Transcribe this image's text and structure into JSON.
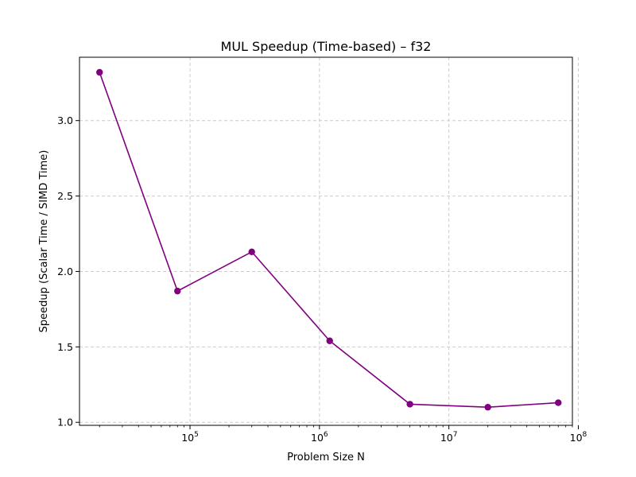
{
  "chart_data": {
    "type": "line",
    "title": "MUL Speedup (Time-based) – f32",
    "xlabel": "Problem Size N",
    "ylabel": "Speedup (Scalar Time / SIMD Time)",
    "x_scale": "log",
    "xlim": [
      14000,
      90000000
    ],
    "ylim": [
      0.98,
      3.42
    ],
    "grid": true,
    "x_ticks": [
      {
        "value": 100000,
        "base": "10",
        "exp": "5"
      },
      {
        "value": 1000000,
        "base": "10",
        "exp": "6"
      },
      {
        "value": 10000000,
        "base": "10",
        "exp": "7"
      },
      {
        "value": 100000000,
        "base": "10",
        "exp": "8"
      }
    ],
    "y_ticks": [
      {
        "value": 1.0,
        "label": "1.0"
      },
      {
        "value": 1.5,
        "label": "1.5"
      },
      {
        "value": 2.0,
        "label": "2.0"
      },
      {
        "value": 2.5,
        "label": "2.5"
      },
      {
        "value": 3.0,
        "label": "3.0"
      }
    ],
    "series": [
      {
        "color": "#800080",
        "marker": "circle",
        "x": [
          20000,
          80000,
          300000,
          1200000,
          5000000,
          20000000,
          70000000
        ],
        "y": [
          3.32,
          1.87,
          2.13,
          1.54,
          1.12,
          1.1,
          1.13
        ]
      }
    ]
  }
}
